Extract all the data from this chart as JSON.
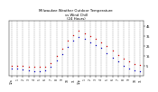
{
  "title": "Milwaukee Weather Outdoor Temperature\nvs Wind Chill\n(24 Hours)",
  "title_fontsize": 2.8,
  "background_color": "#ffffff",
  "grid_color": "#888888",
  "x_hours": [
    0,
    1,
    2,
    3,
    4,
    5,
    6,
    7,
    8,
    9,
    10,
    11,
    12,
    13,
    14,
    15,
    16,
    17,
    18,
    19,
    20,
    21,
    22,
    23
  ],
  "temp": [
    5,
    5,
    5,
    4,
    4,
    4,
    4,
    8,
    15,
    22,
    30,
    36,
    40,
    38,
    35,
    32,
    29,
    25,
    20,
    16,
    12,
    9,
    7,
    6
  ],
  "windchill": [
    2,
    2,
    1,
    0,
    -1,
    -1,
    0,
    4,
    10,
    17,
    24,
    30,
    34,
    32,
    29,
    26,
    23,
    18,
    13,
    9,
    5,
    2,
    0,
    -1
  ],
  "temp_color": "#cc0000",
  "windchill_color": "#0000bb",
  "ylim": [
    -5,
    50
  ],
  "yticks": [
    5,
    15,
    25,
    35,
    45
  ],
  "ytick_labels": [
    "5",
    "15",
    "25",
    "35",
    "45"
  ],
  "ylabel_fontsize": 2.5,
  "xlabel_fontsize": 2.2,
  "marker_size": 1.0,
  "xtick_labels": [
    "12a",
    "1",
    "2",
    "3",
    "4",
    "5",
    "6",
    "7",
    "8",
    "9",
    "10",
    "11",
    "12p",
    "1",
    "2",
    "3",
    "4",
    "5",
    "6",
    "7",
    "8",
    "9",
    "10",
    "11"
  ]
}
